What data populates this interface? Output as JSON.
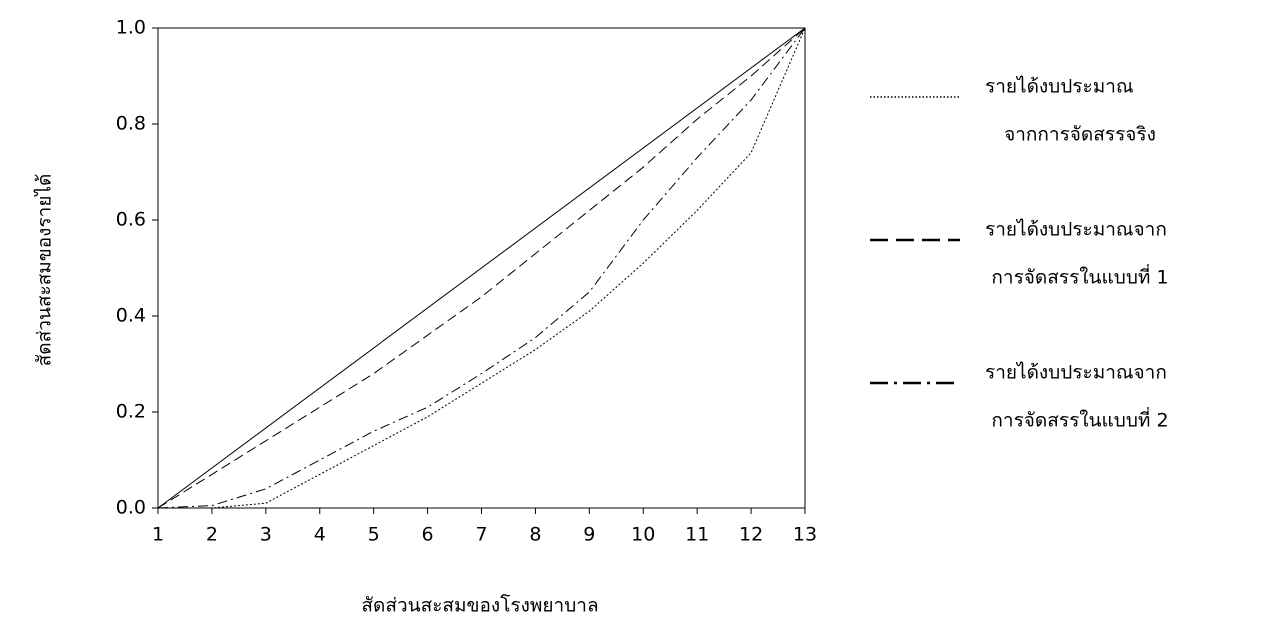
{
  "chart_data": {
    "type": "line",
    "x_label": "สัดส่วนสะสมของโรงพยาบาล",
    "y_label": "สัดส่วนสะสมของรายได้",
    "x": [
      1,
      2,
      3,
      4,
      5,
      6,
      7,
      8,
      9,
      10,
      11,
      12,
      13
    ],
    "xlim": [
      1,
      13
    ],
    "xticks": [
      1,
      2,
      3,
      4,
      5,
      6,
      7,
      8,
      9,
      10,
      11,
      12,
      13
    ],
    "ylim": [
      0,
      1
    ],
    "yticks": [
      {
        "value": 0,
        "label": "0.0"
      },
      {
        "value": 0.2,
        "label": "0.2"
      },
      {
        "value": 0.4,
        "label": "0.4"
      },
      {
        "value": 0.6,
        "label": "0.6"
      },
      {
        "value": 0.8,
        "label": "0.8"
      },
      {
        "value": 1,
        "label": "1.0"
      }
    ],
    "equality_line": {
      "x": [
        1,
        13
      ],
      "values": [
        0,
        1
      ],
      "style": "solid",
      "color": "#000000"
    },
    "series": [
      {
        "name": [
          "รายได้งบประมาณ",
          "จากการจัดสรรจริง"
        ],
        "style": "dotted",
        "color": "#000000",
        "values": [
          0,
          0,
          0.01,
          0.07,
          0.13,
          0.19,
          0.26,
          0.33,
          0.41,
          0.51,
          0.62,
          0.74,
          1
        ]
      },
      {
        "name": [
          "รายได้งบประมาณจาก",
          "การจัดสรรในแบบที่ 1"
        ],
        "style": "dashed",
        "color": "#000000",
        "values": [
          0,
          0.07,
          0.14,
          0.21,
          0.28,
          0.36,
          0.44,
          0.53,
          0.62,
          0.71,
          0.81,
          0.9,
          1
        ]
      },
      {
        "name": [
          "รายได้งบประมาณจาก",
          "การจัดสรรในแบบที่ 2"
        ],
        "style": "dashdot",
        "color": "#000000",
        "values": [
          0,
          0.005,
          0.04,
          0.1,
          0.16,
          0.21,
          0.28,
          0.355,
          0.45,
          0.6,
          0.73,
          0.85,
          1
        ]
      }
    ]
  }
}
